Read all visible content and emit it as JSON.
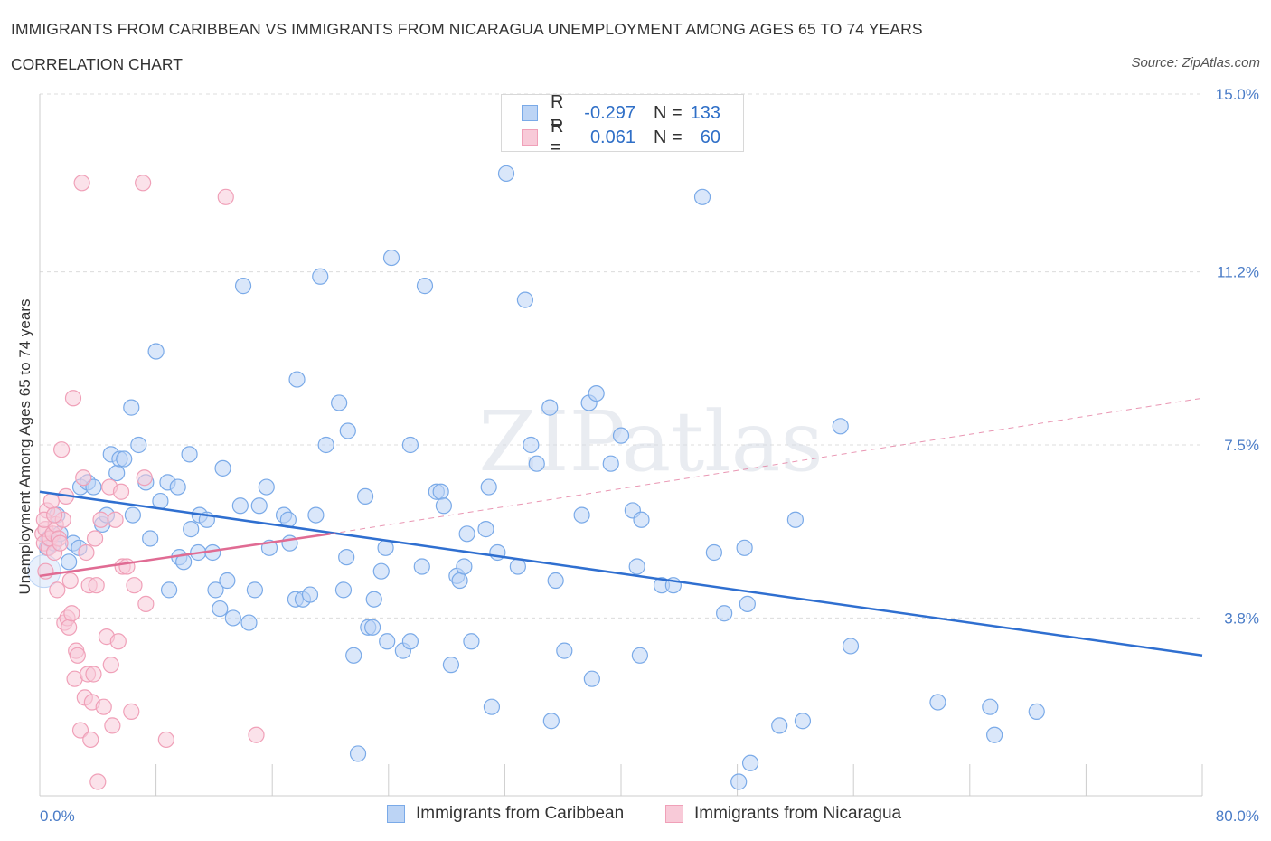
{
  "chart_data": {
    "type": "scatter",
    "title": "IMMIGRANTS FROM CARIBBEAN VS IMMIGRANTS FROM NICARAGUA UNEMPLOYMENT AMONG AGES 65 TO 74 YEARS",
    "subtitle": "CORRELATION CHART",
    "source": "Source: ZipAtlas.com",
    "watermark": "ZIPatlas",
    "xlabel": "",
    "ylabel": "Unemployment Among Ages 65 to 74 years",
    "xlim": [
      0,
      80
    ],
    "ylim": [
      0,
      15
    ],
    "x_tick_labels": [
      "0.0%",
      "80.0%"
    ],
    "y_ticks": [
      {
        "value": 3.8,
        "label": "3.8%"
      },
      {
        "value": 7.5,
        "label": "7.5%"
      },
      {
        "value": 11.2,
        "label": "11.2%"
      },
      {
        "value": 15.0,
        "label": "15.0%"
      }
    ],
    "legend": {
      "rows": [
        {
          "r_label": "R =",
          "r_value": "-0.297",
          "n_label": "N =",
          "n_value": "133"
        },
        {
          "r_label": "R =",
          "r_value": "0.061",
          "n_label": "N =",
          "n_value": "60"
        }
      ]
    },
    "series": [
      {
        "name": "Immigrants from Caribbean",
        "color": "#7aaae8",
        "fill": "#bcd4f5",
        "line_color": "#2f6fd0",
        "trend": {
          "x": [
            0,
            80
          ],
          "y": [
            6.5,
            3.0
          ]
        },
        "points": [
          [
            0.5,
            5.3
          ],
          [
            0.6,
            5.5
          ],
          [
            1.0,
            5.4
          ],
          [
            1.2,
            6.0
          ],
          [
            1.4,
            5.6
          ],
          [
            2.0,
            5.0
          ],
          [
            2.3,
            5.4
          ],
          [
            2.7,
            5.3
          ],
          [
            2.8,
            6.6
          ],
          [
            3.3,
            6.7
          ],
          [
            3.7,
            6.6
          ],
          [
            4.3,
            5.8
          ],
          [
            4.6,
            6.0
          ],
          [
            4.9,
            7.3
          ],
          [
            5.3,
            6.9
          ],
          [
            5.5,
            7.2
          ],
          [
            5.8,
            7.2
          ],
          [
            6.3,
            8.3
          ],
          [
            6.4,
            6.0
          ],
          [
            6.8,
            7.5
          ],
          [
            7.3,
            6.7
          ],
          [
            7.6,
            5.5
          ],
          [
            8.0,
            9.5
          ],
          [
            8.3,
            6.3
          ],
          [
            8.8,
            6.7
          ],
          [
            8.9,
            4.4
          ],
          [
            9.5,
            6.6
          ],
          [
            9.6,
            5.1
          ],
          [
            9.9,
            5.0
          ],
          [
            10.3,
            7.3
          ],
          [
            10.4,
            5.7
          ],
          [
            10.9,
            5.2
          ],
          [
            11.0,
            6.0
          ],
          [
            11.5,
            5.9
          ],
          [
            11.9,
            5.2
          ],
          [
            12.1,
            4.4
          ],
          [
            12.4,
            4.0
          ],
          [
            12.6,
            7.0
          ],
          [
            12.9,
            4.6
          ],
          [
            13.3,
            3.8
          ],
          [
            13.8,
            6.2
          ],
          [
            14.0,
            10.9
          ],
          [
            14.4,
            3.7
          ],
          [
            14.8,
            4.4
          ],
          [
            15.1,
            6.2
          ],
          [
            15.6,
            6.6
          ],
          [
            15.8,
            5.3
          ],
          [
            16.8,
            6.0
          ],
          [
            17.1,
            5.9
          ],
          [
            17.2,
            5.4
          ],
          [
            17.6,
            4.2
          ],
          [
            17.7,
            8.9
          ],
          [
            18.1,
            4.2
          ],
          [
            18.6,
            4.3
          ],
          [
            19.0,
            6.0
          ],
          [
            19.3,
            11.1
          ],
          [
            19.7,
            7.5
          ],
          [
            20.6,
            8.4
          ],
          [
            20.9,
            4.4
          ],
          [
            21.1,
            5.1
          ],
          [
            21.2,
            7.8
          ],
          [
            21.6,
            3.0
          ],
          [
            21.9,
            0.9
          ],
          [
            22.4,
            6.4
          ],
          [
            22.6,
            3.6
          ],
          [
            22.9,
            3.6
          ],
          [
            23.0,
            4.2
          ],
          [
            23.5,
            4.8
          ],
          [
            23.8,
            5.3
          ],
          [
            23.9,
            3.3
          ],
          [
            24.2,
            11.5
          ],
          [
            25.0,
            3.1
          ],
          [
            25.5,
            3.3
          ],
          [
            25.5,
            7.5
          ],
          [
            26.3,
            4.9
          ],
          [
            26.5,
            10.9
          ],
          [
            27.3,
            6.5
          ],
          [
            27.6,
            6.5
          ],
          [
            27.8,
            6.2
          ],
          [
            28.3,
            2.8
          ],
          [
            28.7,
            4.7
          ],
          [
            28.9,
            4.6
          ],
          [
            29.2,
            4.9
          ],
          [
            29.4,
            5.6
          ],
          [
            29.7,
            3.3
          ],
          [
            30.7,
            5.7
          ],
          [
            30.9,
            6.6
          ],
          [
            31.1,
            1.9
          ],
          [
            31.5,
            5.2
          ],
          [
            32.1,
            13.3
          ],
          [
            32.9,
            4.9
          ],
          [
            33.4,
            10.6
          ],
          [
            33.8,
            7.5
          ],
          [
            34.2,
            7.1
          ],
          [
            35.1,
            8.3
          ],
          [
            35.2,
            1.6
          ],
          [
            35.5,
            4.6
          ],
          [
            36.1,
            3.1
          ],
          [
            37.3,
            6.0
          ],
          [
            38.0,
            2.5
          ],
          [
            37.8,
            8.4
          ],
          [
            38.3,
            8.6
          ],
          [
            39.3,
            7.1
          ],
          [
            40.0,
            7.7
          ],
          [
            40.8,
            6.1
          ],
          [
            41.4,
            5.9
          ],
          [
            41.3,
            3.0
          ],
          [
            41.1,
            4.9
          ],
          [
            42.8,
            4.5
          ],
          [
            43.6,
            4.5
          ],
          [
            45.6,
            12.8
          ],
          [
            46.4,
            5.2
          ],
          [
            47.1,
            3.9
          ],
          [
            48.5,
            5.3
          ],
          [
            48.7,
            4.1
          ],
          [
            48.9,
            0.7
          ],
          [
            48.1,
            0.3
          ],
          [
            50.9,
            1.5
          ],
          [
            52.5,
            1.6
          ],
          [
            52.0,
            5.9
          ],
          [
            55.1,
            7.9
          ],
          [
            55.8,
            3.2
          ],
          [
            61.8,
            2.0
          ],
          [
            65.4,
            1.9
          ],
          [
            65.7,
            1.3
          ],
          [
            68.6,
            1.8
          ]
        ]
      },
      {
        "name": "Immigrants from Nicaragua",
        "color": "#f0a0b8",
        "fill": "#f8cad8",
        "line_color": "#e06b93",
        "trend": {
          "x": [
            0,
            20
          ],
          "y": [
            4.7,
            5.6
          ]
        },
        "trend_extension": {
          "x": [
            20,
            80
          ],
          "y": [
            5.6,
            8.5
          ]
        },
        "points": [
          [
            0.2,
            5.6
          ],
          [
            0.3,
            5.4
          ],
          [
            0.4,
            5.7
          ],
          [
            0.5,
            6.1
          ],
          [
            0.6,
            5.3
          ],
          [
            0.7,
            5.5
          ],
          [
            0.8,
            6.3
          ],
          [
            0.9,
            5.6
          ],
          [
            1.0,
            5.2
          ],
          [
            1.1,
            5.8
          ],
          [
            1.2,
            4.4
          ],
          [
            1.3,
            5.5
          ],
          [
            1.4,
            5.4
          ],
          [
            1.5,
            7.4
          ],
          [
            1.6,
            5.9
          ],
          [
            1.7,
            3.7
          ],
          [
            1.8,
            6.4
          ],
          [
            1.9,
            3.8
          ],
          [
            2.0,
            3.6
          ],
          [
            2.1,
            4.6
          ],
          [
            2.2,
            3.9
          ],
          [
            2.3,
            8.5
          ],
          [
            2.4,
            2.5
          ],
          [
            2.5,
            3.1
          ],
          [
            2.6,
            3.0
          ],
          [
            2.8,
            1.4
          ],
          [
            2.9,
            13.1
          ],
          [
            3.0,
            6.8
          ],
          [
            3.1,
            2.1
          ],
          [
            3.2,
            5.2
          ],
          [
            3.3,
            2.6
          ],
          [
            3.4,
            4.5
          ],
          [
            3.5,
            1.2
          ],
          [
            3.6,
            2.0
          ],
          [
            3.7,
            2.6
          ],
          [
            3.8,
            5.5
          ],
          [
            3.9,
            4.5
          ],
          [
            4.0,
            0.3
          ],
          [
            4.2,
            5.9
          ],
          [
            4.4,
            1.9
          ],
          [
            4.6,
            3.4
          ],
          [
            4.8,
            6.6
          ],
          [
            4.9,
            2.8
          ],
          [
            5.0,
            1.5
          ],
          [
            5.2,
            5.9
          ],
          [
            5.4,
            3.3
          ],
          [
            5.6,
            6.5
          ],
          [
            5.7,
            4.9
          ],
          [
            6.0,
            4.9
          ],
          [
            6.3,
            1.8
          ],
          [
            6.5,
            4.5
          ],
          [
            7.1,
            13.1
          ],
          [
            7.2,
            6.8
          ],
          [
            7.3,
            4.1
          ],
          [
            8.7,
            1.2
          ],
          [
            12.8,
            12.8
          ],
          [
            14.9,
            1.3
          ],
          [
            0.4,
            4.8
          ],
          [
            0.3,
            5.9
          ],
          [
            1.0,
            6.0
          ]
        ]
      }
    ]
  }
}
